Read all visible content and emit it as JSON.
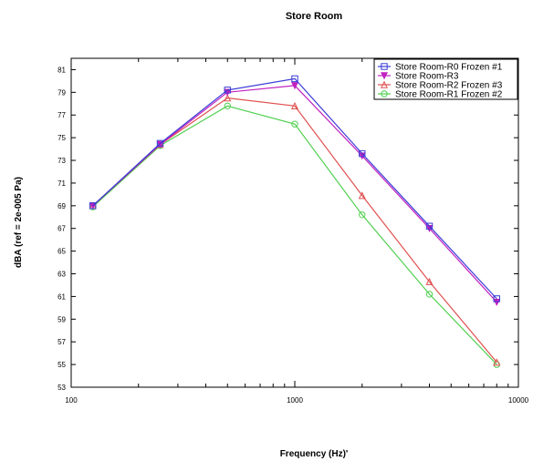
{
  "chart_data": {
    "type": "line",
    "title": "Store Room",
    "xlabel": "Frequency (Hz)'",
    "ylabel": "dBA (ref = 2e-005 Pa)",
    "x_scale": "log",
    "xlim": [
      100,
      10000
    ],
    "ylim": [
      53,
      82
    ],
    "x_ticks": [
      100,
      1000,
      10000
    ],
    "x_tick_labels": [
      "100",
      "1000",
      "10000"
    ],
    "y_ticks": [
      53,
      55,
      57,
      59,
      61,
      63,
      65,
      67,
      69,
      71,
      73,
      75,
      77,
      79,
      81
    ],
    "y_tick_labels": [
      "53",
      "55",
      "57",
      "59",
      "61",
      "63",
      "65",
      "67",
      "69",
      "71",
      "73",
      "75",
      "77",
      "79",
      "81"
    ],
    "grid": false,
    "legend_position": "top-right",
    "x": [
      125,
      250,
      500,
      1000,
      2000,
      4000,
      8000
    ],
    "series": [
      {
        "name": "Store Room-R0 Frozen #1",
        "color": "#3b3bd6",
        "marker": "square",
        "values": [
          69.0,
          74.5,
          79.2,
          80.2,
          73.6,
          67.2,
          60.8
        ]
      },
      {
        "name": "Store Room-R3",
        "color": "#c020c0",
        "marker": "triangle-down",
        "values": [
          69.0,
          74.4,
          79.0,
          79.6,
          73.4,
          67.0,
          60.5
        ]
      },
      {
        "name": "Store Room-R2 Frozen #3",
        "color": "#e05050",
        "marker": "triangle-up",
        "values": [
          69.0,
          74.4,
          78.5,
          77.8,
          69.9,
          62.3,
          55.2
        ]
      },
      {
        "name": "Store Room-R1 Frozen #2",
        "color": "#50d050",
        "marker": "circle",
        "values": [
          68.9,
          74.3,
          77.8,
          76.2,
          68.2,
          61.2,
          55.0
        ]
      }
    ]
  }
}
